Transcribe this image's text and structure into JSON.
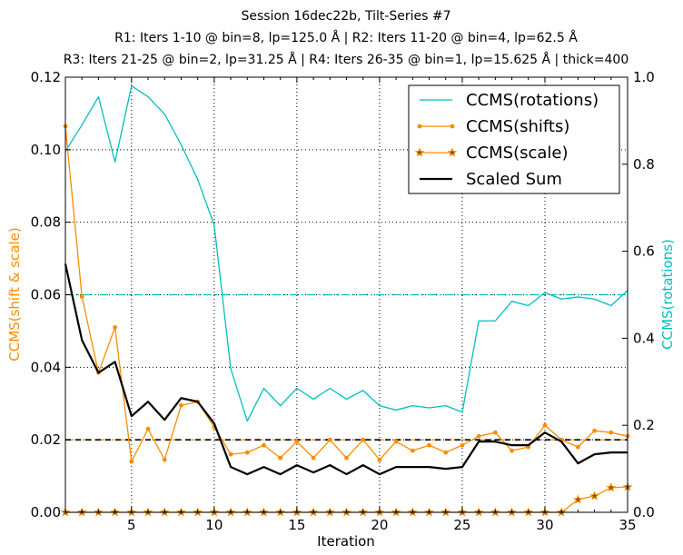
{
  "chart_data": {
    "type": "line",
    "title_lines": [
      "Session 16dec22b, Tilt-Series #7",
      "R1: Iters 1-10 @ bin=8, lp=125.0 Å | R2: Iters 11-20 @ bin=4, lp=62.5 Å",
      "R3: Iters 21-25 @ bin=2, lp=31.25 Å | R4: Iters 26-35 @ bin=1, lp=15.625 Å | thick=400"
    ],
    "xlabel": "Iteration",
    "ylabel_left": "CCMS(shift & scale)",
    "ylabel_right": "CCMS(rotations)",
    "xlim": [
      1,
      35
    ],
    "ylim_left": [
      0.0,
      0.12
    ],
    "ylim_right": [
      0.0,
      1.0
    ],
    "xticks": [
      5,
      10,
      15,
      20,
      25,
      30,
      35
    ],
    "xtick_labels": [
      "5",
      "10",
      "15",
      "20",
      "25",
      "30",
      "35"
    ],
    "yticks_left": [
      0.0,
      0.02,
      0.04,
      0.06,
      0.08,
      0.1,
      0.12
    ],
    "ytick_labels_left": [
      "0.00",
      "0.02",
      "0.04",
      "0.06",
      "0.08",
      "0.10",
      "0.12"
    ],
    "yticks_right": [
      0.0,
      0.2,
      0.4,
      0.6,
      0.8,
      1.0
    ],
    "ytick_labels_right": [
      "0.0",
      "0.2",
      "0.4",
      "0.6",
      "0.8",
      "1.0"
    ],
    "grid": true,
    "legend_position": "top-right",
    "x": [
      1,
      2,
      3,
      4,
      5,
      6,
      7,
      8,
      9,
      10,
      11,
      12,
      13,
      14,
      15,
      16,
      17,
      18,
      19,
      20,
      21,
      22,
      23,
      24,
      25,
      26,
      27,
      28,
      29,
      30,
      31,
      32,
      33,
      34,
      35
    ],
    "series": [
      {
        "name": "CCMS(rotations)",
        "axis": "right",
        "color": "#00bfbf",
        "marker": "none",
        "values": [
          0.83,
          0.89,
          0.955,
          0.805,
          0.98,
          0.955,
          0.915,
          0.845,
          0.765,
          0.66,
          0.33,
          0.21,
          0.285,
          0.245,
          0.285,
          0.26,
          0.285,
          0.26,
          0.28,
          0.245,
          0.235,
          0.245,
          0.24,
          0.245,
          0.23,
          0.44,
          0.44,
          0.485,
          0.475,
          0.505,
          0.49,
          0.495,
          0.49,
          0.475,
          0.51
        ]
      },
      {
        "name": "CCMS(shifts)",
        "axis": "left",
        "color": "#ff8c00",
        "marker": "dot",
        "values": [
          0.1065,
          0.0595,
          0.0385,
          0.051,
          0.014,
          0.023,
          0.0145,
          0.0295,
          0.0305,
          0.0235,
          0.016,
          0.0165,
          0.0185,
          0.015,
          0.0195,
          0.015,
          0.02,
          0.015,
          0.02,
          0.0145,
          0.0195,
          0.017,
          0.0185,
          0.0165,
          0.0185,
          0.021,
          0.022,
          0.017,
          0.018,
          0.024,
          0.02,
          0.018,
          0.0225,
          0.022,
          0.021
        ]
      },
      {
        "name": "CCMS(scale)",
        "axis": "left",
        "color": "#ff8c00",
        "marker": "star",
        "values": [
          0,
          0,
          0,
          0,
          0,
          0,
          0,
          0,
          0,
          0,
          0,
          0,
          0,
          0,
          0,
          0,
          0,
          0,
          0,
          0,
          0,
          0,
          0,
          0,
          0,
          0,
          0,
          0,
          0,
          0,
          0,
          0.0035,
          0.0045,
          0.0068,
          0.007
        ]
      },
      {
        "name": "Scaled Sum",
        "axis": "left",
        "color": "#000000",
        "marker": "none",
        "values": [
          0.0685,
          0.0475,
          0.0385,
          0.0415,
          0.0265,
          0.0305,
          0.0255,
          0.0315,
          0.0305,
          0.0245,
          0.0125,
          0.0105,
          0.0125,
          0.0105,
          0.013,
          0.011,
          0.013,
          0.0105,
          0.013,
          0.0105,
          0.0125,
          0.0125,
          0.0125,
          0.012,
          0.0125,
          0.0195,
          0.0195,
          0.0185,
          0.0185,
          0.022,
          0.0195,
          0.0135,
          0.016,
          0.0165,
          0.0165
        ]
      }
    ],
    "reference_lines": [
      {
        "axis": "right",
        "value": 0.5,
        "color": "#00bfbf",
        "style": "dashdot"
      },
      {
        "axis": "left",
        "value": 0.02,
        "color": "#ff8c00",
        "style": "dashdot"
      },
      {
        "axis": "left",
        "value": 0.02,
        "color": "#000000",
        "style": "dashed"
      }
    ]
  }
}
